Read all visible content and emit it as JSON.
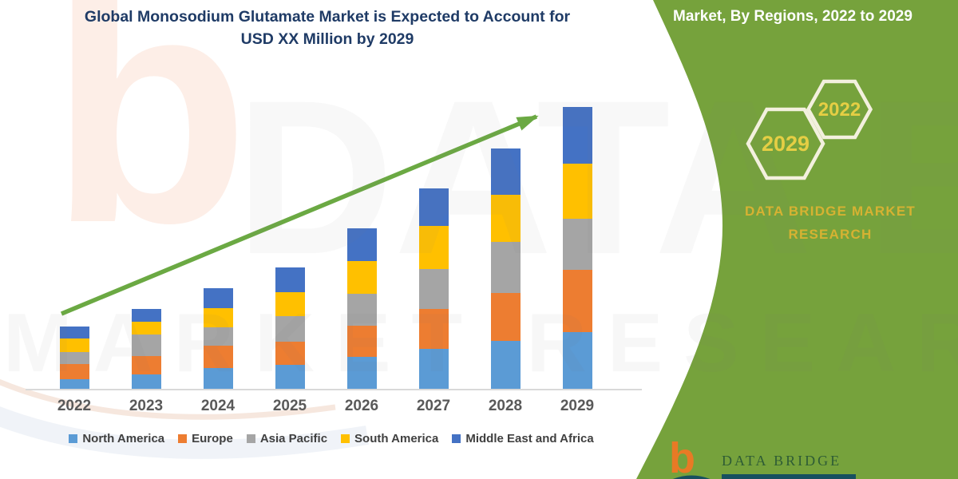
{
  "title": {
    "line1": "Global Monosodium Glutamate Market is Expected to Account for",
    "line2": "USD XX Million by 2029"
  },
  "sidebar": {
    "header": "Market, By Regions, 2022 to 2029",
    "hex_top_year": "2022",
    "hex_bottom_year": "2029",
    "brand_line1": "DATA BRIDGE MARKET",
    "brand_line2": "RESEARCH",
    "background_color": "#76A23C",
    "hex_outline_color": "#F3F0DE",
    "hex_year_color": "#E5CE44",
    "brand_text_color": "#D6B232"
  },
  "footer_logo": {
    "mark": "b",
    "wordmark": "DATA BRIDGE",
    "mark_color": "#E87A25",
    "wordmark_color": "#2E5C35"
  },
  "watermarks": {
    "letter": "b",
    "line1": "DATA BRIDGE",
    "line2": "MARKET RESEARCH"
  },
  "colors": {
    "title_text": "#1F3B66",
    "axis_label": "#595959",
    "legend_text": "#404040",
    "axis_line": "#D9D9D9",
    "trend_arrow": "#6BA943"
  },
  "chart_data": {
    "type": "bar",
    "stacked": true,
    "title": "Global Monosodium Glutamate Market is Expected to Account for USD XX Million by 2029",
    "categories": [
      "2022",
      "2023",
      "2024",
      "2025",
      "2026",
      "2027",
      "2028",
      "2029"
    ],
    "series": [
      {
        "name": "North America",
        "color": "#5B9BD5",
        "values": [
          12,
          18,
          26,
          30,
          40,
          50,
          60,
          71
        ]
      },
      {
        "name": "Europe",
        "color": "#ED7D31",
        "values": [
          19,
          23,
          28,
          29,
          39,
          50,
          60,
          78
        ]
      },
      {
        "name": "Asia Pacific",
        "color": "#A5A5A5",
        "values": [
          15,
          27,
          23,
          32,
          40,
          50,
          64,
          64
        ]
      },
      {
        "name": "South America",
        "color": "#FFC000",
        "values": [
          17,
          16,
          24,
          30,
          41,
          54,
          59,
          69
        ]
      },
      {
        "name": "Middle East and Africa",
        "color": "#4472C4",
        "values": [
          15,
          16,
          25,
          31,
          41,
          47,
          58,
          71
        ]
      }
    ],
    "totals": [
      78,
      100,
      126,
      152,
      201,
      251,
      301,
      353
    ],
    "xlabel": "",
    "ylabel": "",
    "value_note": "y-axis unlabeled in source (USD XX Million); values are relative units estimated from bar pixel heights",
    "ylim": [
      0,
      380
    ],
    "grid": false,
    "legend_position": "bottom",
    "annotations": [
      "green upward trend arrow from 2022 toward 2029"
    ]
  }
}
